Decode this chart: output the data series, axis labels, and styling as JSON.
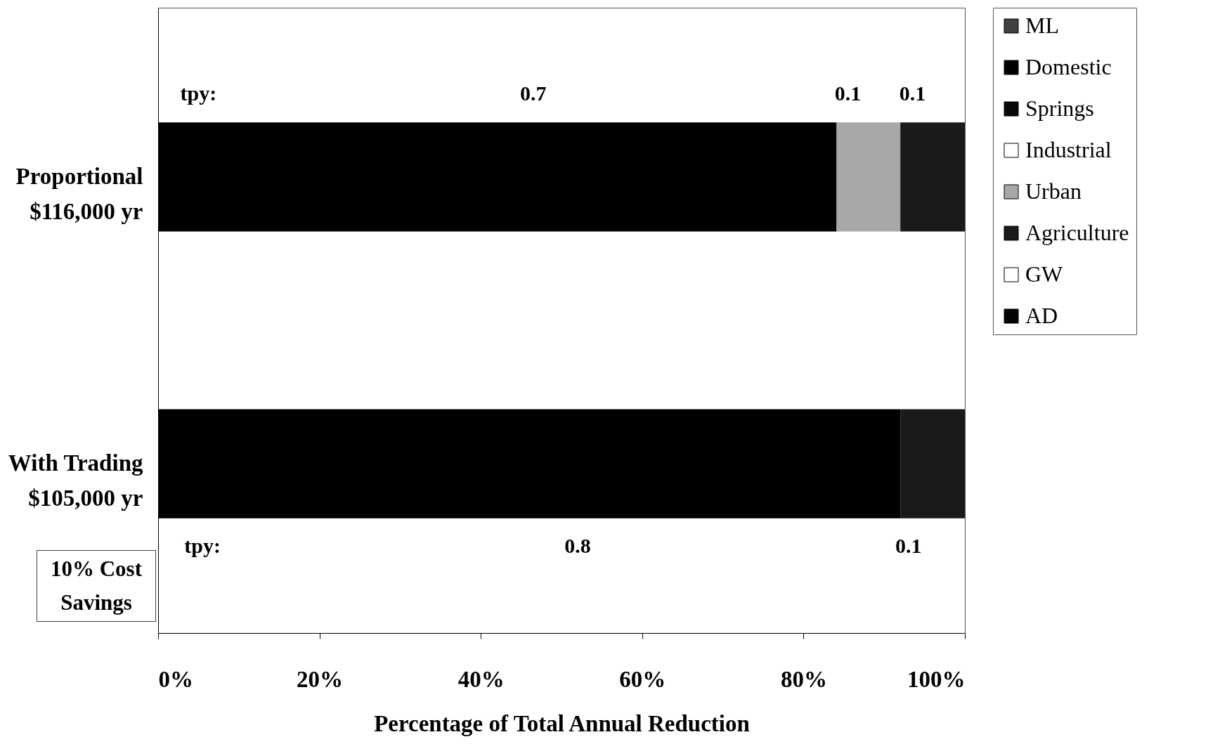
{
  "chart_data": {
    "type": "bar",
    "orientation": "horizontal",
    "stacked": true,
    "categories": [
      "Proportional\n$116,000 yr",
      "With Trading\n$105,000 yr"
    ],
    "series": [
      {
        "name": "ML",
        "color": "#404040",
        "values": [
          0,
          0
        ]
      },
      {
        "name": "Domestic",
        "color": "#000000",
        "values": [
          84.1,
          92.0
        ]
      },
      {
        "name": "Springs",
        "color": "#080808",
        "values": [
          0,
          0
        ]
      },
      {
        "name": "Industrial",
        "color": "#ffffff",
        "values": [
          0,
          0
        ]
      },
      {
        "name": "Urban",
        "color": "#a8a8a8",
        "values": [
          7.9,
          0
        ]
      },
      {
        "name": "Agriculture",
        "color": "#1a1a1a",
        "values": [
          8.0,
          8.0
        ]
      },
      {
        "name": "GW",
        "color": "#ffffff",
        "values": [
          0,
          0
        ]
      },
      {
        "name": "AD",
        "color": "#050505",
        "values": [
          0,
          0
        ]
      }
    ],
    "xlim": [
      0,
      100
    ],
    "xticks": [
      {
        "value": 0,
        "label": "0%"
      },
      {
        "value": 20,
        "label": "20%"
      },
      {
        "value": 40,
        "label": "40%"
      },
      {
        "value": 60,
        "label": "60%"
      },
      {
        "value": 80,
        "label": "80%"
      },
      {
        "value": 100,
        "label": "100%"
      }
    ],
    "xlabel": "Percentage of Total Annual Reduction",
    "legend": "right",
    "annotations": [
      "tpy:",
      "0.7",
      "0.1",
      "0.1",
      "tpy:",
      "0.8",
      "0.1",
      "10% Cost Savings"
    ]
  }
}
